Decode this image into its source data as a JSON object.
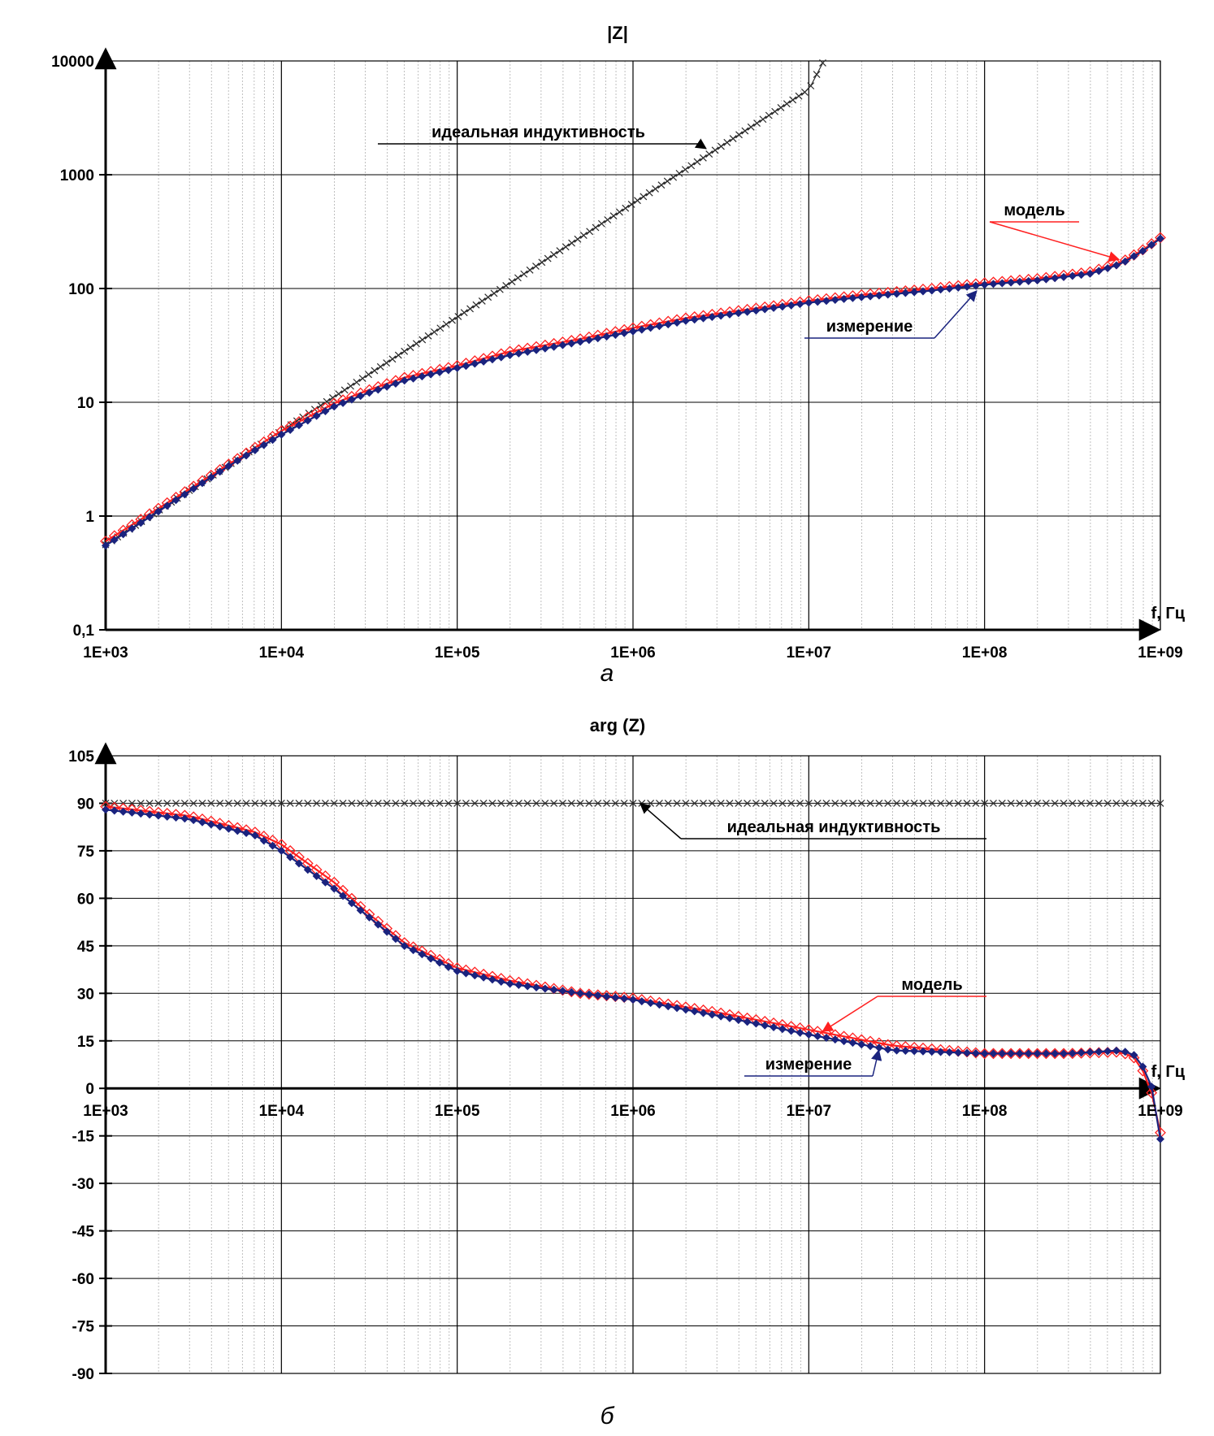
{
  "chart_data": [
    {
      "type": "line",
      "title": "|Z|",
      "xlabel": "f, Гц",
      "ylabel": "",
      "x_scale": "log",
      "y_scale": "log",
      "xlim": [
        1000,
        1000000000
      ],
      "ylim": [
        0.1,
        10000
      ],
      "grid": true,
      "x_tick_labels": [
        "1E+03",
        "1E+04",
        "1E+05",
        "1E+06",
        "1E+07",
        "1E+08",
        "1E+09"
      ],
      "y_tick_labels": [
        "0,1",
        "1",
        "10",
        "100",
        "1000",
        "10000"
      ],
      "sublabel": "а",
      "series": [
        {
          "name": "идеальная индуктивность",
          "color": "#2b2b2b",
          "marker": "x",
          "x": [
            1000,
            2000,
            5000,
            10000,
            20000,
            50000,
            100000,
            200000,
            500000,
            1000000,
            2000000,
            5000000,
            10000000,
            12000000
          ],
          "y": [
            0.56,
            1.12,
            2.8,
            5.6,
            11.2,
            28,
            56,
            112,
            280,
            560,
            1120,
            2800,
            5600,
            9600
          ]
        },
        {
          "name": "модель",
          "color": "#ff2020",
          "marker": "diamond-open",
          "x": [
            1000,
            2000,
            5000,
            10000,
            20000,
            30000,
            50000,
            100000,
            200000,
            500000,
            1000000,
            2000000,
            5000000,
            10000000,
            20000000,
            50000000,
            100000000,
            200000000,
            400000000,
            600000000,
            800000000,
            1000000000
          ],
          "y": [
            0.6,
            1.17,
            2.85,
            5.6,
            9.8,
            12.5,
            16.5,
            21,
            28,
            36,
            45,
            55,
            67,
            78,
            88,
            100,
            112,
            122,
            140,
            170,
            220,
            280
          ]
        },
        {
          "name": "измерение",
          "color": "#1a237e",
          "marker": "diamond-filled",
          "x": [
            1000,
            2000,
            5000,
            10000,
            20000,
            30000,
            50000,
            100000,
            200000,
            500000,
            1000000,
            2000000,
            5000000,
            10000000,
            20000000,
            50000000,
            100000000,
            200000000,
            400000000,
            600000000,
            800000000,
            1000000000
          ],
          "y": [
            0.55,
            1.1,
            2.75,
            5.2,
            9.2,
            11.8,
            15.5,
            20,
            26,
            34,
            42,
            52,
            64,
            75,
            84,
            96,
            108,
            118,
            135,
            165,
            215,
            275
          ]
        }
      ],
      "annotations": [
        {
          "text": "идеальная индуктивность",
          "x": 2600000,
          "y": 1700
        },
        {
          "text": "модель",
          "x": 580000000,
          "y": 180
        },
        {
          "text": "измерение",
          "x": 90000000,
          "y": 95
        }
      ]
    },
    {
      "type": "line",
      "title": "arg (Z)",
      "xlabel": "f, Гц",
      "ylabel": "",
      "x_scale": "log",
      "xlim": [
        1000,
        1000000000
      ],
      "ylim": [
        -90,
        105
      ],
      "grid": true,
      "x_tick_labels": [
        "1E+03",
        "1E+04",
        "1E+05",
        "1E+06",
        "1E+07",
        "1E+08",
        "1E+09"
      ],
      "y_tick_labels": [
        "105",
        "90",
        "75",
        "60",
        "45",
        "30",
        "15",
        "0",
        "-15",
        "-30",
        "-45",
        "-60",
        "-75",
        "-90"
      ],
      "sublabel": "б",
      "series": [
        {
          "name": "идеальная индуктивность",
          "color": "#2b2b2b",
          "marker": "x",
          "x": [
            1000,
            1000000000
          ],
          "y": [
            90,
            90
          ]
        },
        {
          "name": "модель",
          "color": "#ff2020",
          "marker": "diamond-open",
          "x": [
            1000,
            3000,
            7000,
            10000,
            20000,
            30000,
            50000,
            100000,
            200000,
            500000,
            1000000,
            3000000,
            10000000,
            30000000,
            100000000,
            300000000,
            600000000,
            750000000,
            900000000,
            1000000000
          ],
          "y": [
            89,
            86,
            81,
            77,
            65,
            56,
            46,
            38,
            34,
            30,
            28.5,
            24,
            18.5,
            13.5,
            11,
            11,
            11.5,
            9,
            -2,
            -14
          ]
        },
        {
          "name": "измерение",
          "color": "#1a237e",
          "marker": "diamond-filled",
          "x": [
            1000,
            3000,
            7000,
            10000,
            20000,
            30000,
            50000,
            100000,
            200000,
            500000,
            1000000,
            3000000,
            10000000,
            30000000,
            100000000,
            300000000,
            600000000,
            750000000,
            900000000,
            1000000000
          ],
          "y": [
            88,
            85,
            80,
            75,
            63,
            55,
            45,
            37,
            33,
            30,
            28,
            23,
            17,
            12,
            11,
            11,
            12,
            10,
            0,
            -16
          ]
        }
      ],
      "annotations": [
        {
          "text": "идеальная индуктивность",
          "x": 1100000,
          "y": 90
        },
        {
          "text": "модель",
          "x": 12000000,
          "y": 18
        },
        {
          "text": "измерение",
          "x": 25000000,
          "y": 12
        }
      ]
    }
  ]
}
